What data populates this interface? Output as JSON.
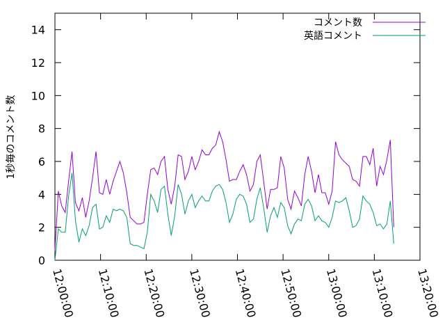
{
  "chart_data": {
    "type": "line",
    "title": "",
    "xlabel": "",
    "ylabel": "1秒毎のコメント数",
    "xlim": [
      "12:00:00",
      "13:20:00"
    ],
    "ylim": [
      0,
      15
    ],
    "x_ticks": [
      "12:00:00",
      "12:10:00",
      "12:20:00",
      "12:30:00",
      "12:40:00",
      "12:50:00",
      "13:00:00",
      "13:10:00",
      "13:20:00"
    ],
    "y_ticks": [
      0,
      2,
      4,
      6,
      8,
      10,
      12,
      14
    ],
    "grid": false,
    "legend_position": "top-right",
    "series": [
      {
        "name": "コメント数",
        "color": "#9400d3",
        "points": [
          [
            "12:00:00",
            0.6
          ],
          [
            "12:00:45",
            4.2
          ],
          [
            "12:01:30",
            3.3
          ],
          [
            "12:02:15",
            2.9
          ],
          [
            "12:03:00",
            4.8
          ],
          [
            "12:03:45",
            6.6
          ],
          [
            "12:04:30",
            3.5
          ],
          [
            "12:05:15",
            3.0
          ],
          [
            "12:06:00",
            3.8
          ],
          [
            "12:06:45",
            2.6
          ],
          [
            "12:07:30",
            3.6
          ],
          [
            "12:08:15",
            5.0
          ],
          [
            "12:09:00",
            6.6
          ],
          [
            "12:09:45",
            4.1
          ],
          [
            "12:10:30",
            4.0
          ],
          [
            "12:11:15",
            4.9
          ],
          [
            "12:12:00",
            4.0
          ],
          [
            "12:12:45",
            4.8
          ],
          [
            "12:13:30",
            5.4
          ],
          [
            "12:14:15",
            6.0
          ],
          [
            "12:15:00",
            5.3
          ],
          [
            "12:15:45",
            4.1
          ],
          [
            "12:16:30",
            2.6
          ],
          [
            "12:17:15",
            2.4
          ],
          [
            "12:18:00",
            2.2
          ],
          [
            "12:18:45",
            2.2
          ],
          [
            "12:19:30",
            2.3
          ],
          [
            "12:20:15",
            4.0
          ],
          [
            "12:21:00",
            5.5
          ],
          [
            "12:21:45",
            5.6
          ],
          [
            "12:22:30",
            5.2
          ],
          [
            "12:23:15",
            6.0
          ],
          [
            "12:24:00",
            6.3
          ],
          [
            "12:24:45",
            4.3
          ],
          [
            "12:25:30",
            3.4
          ],
          [
            "12:26:15",
            4.5
          ],
          [
            "12:27:00",
            6.4
          ],
          [
            "12:27:45",
            6.3
          ],
          [
            "12:28:30",
            4.9
          ],
          [
            "12:29:15",
            5.4
          ],
          [
            "12:30:00",
            6.3
          ],
          [
            "12:30:45",
            5.5
          ],
          [
            "12:31:30",
            6.0
          ],
          [
            "12:32:15",
            6.7
          ],
          [
            "12:33:00",
            6.4
          ],
          [
            "12:33:45",
            6.4
          ],
          [
            "12:34:30",
            6.8
          ],
          [
            "12:35:15",
            7.0
          ],
          [
            "12:36:00",
            7.8
          ],
          [
            "12:36:45",
            7.2
          ],
          [
            "12:37:30",
            6.1
          ],
          [
            "12:38:15",
            4.8
          ],
          [
            "12:39:00",
            4.9
          ],
          [
            "12:39:45",
            4.9
          ],
          [
            "12:40:30",
            5.4
          ],
          [
            "12:41:15",
            5.8
          ],
          [
            "12:42:00",
            5.2
          ],
          [
            "12:42:45",
            4.2
          ],
          [
            "12:43:30",
            4.6
          ],
          [
            "12:44:15",
            6.0
          ],
          [
            "12:45:00",
            6.4
          ],
          [
            "12:45:45",
            4.8
          ],
          [
            "12:46:30",
            3.1
          ],
          [
            "12:47:15",
            4.3
          ],
          [
            "12:48:00",
            4.3
          ],
          [
            "12:48:45",
            4.4
          ],
          [
            "12:49:30",
            6.3
          ],
          [
            "12:50:15",
            5.6
          ],
          [
            "12:51:00",
            3.7
          ],
          [
            "12:51:45",
            3.1
          ],
          [
            "12:52:30",
            4.2
          ],
          [
            "12:53:15",
            3.8
          ],
          [
            "12:54:00",
            3.3
          ],
          [
            "12:54:45",
            5.2
          ],
          [
            "12:55:30",
            6.3
          ],
          [
            "12:56:15",
            5.4
          ],
          [
            "12:57:00",
            4.1
          ],
          [
            "12:57:45",
            5.2
          ],
          [
            "12:58:30",
            4.1
          ],
          [
            "12:59:15",
            4.1
          ],
          [
            "13:00:00",
            3.4
          ],
          [
            "13:00:45",
            4.2
          ],
          [
            "13:01:30",
            7.2
          ],
          [
            "13:02:15",
            6.4
          ],
          [
            "13:03:00",
            6.1
          ],
          [
            "13:03:45",
            5.9
          ],
          [
            "13:04:30",
            5.7
          ],
          [
            "13:05:15",
            4.9
          ],
          [
            "13:06:00",
            4.8
          ],
          [
            "13:06:45",
            4.5
          ],
          [
            "13:07:30",
            6.3
          ],
          [
            "13:08:15",
            6.3
          ],
          [
            "13:09:00",
            5.8
          ],
          [
            "13:09:45",
            6.8
          ],
          [
            "13:10:30",
            4.5
          ],
          [
            "13:11:15",
            5.7
          ],
          [
            "13:12:00",
            5.2
          ],
          [
            "13:12:45",
            6.1
          ],
          [
            "13:13:30",
            7.3
          ],
          [
            "13:14:15",
            2.0
          ]
        ]
      },
      {
        "name": "英語コメント",
        "color": "#009e73",
        "points": [
          [
            "12:00:00",
            0.0
          ],
          [
            "12:00:45",
            1.9
          ],
          [
            "12:01:30",
            1.7
          ],
          [
            "12:02:15",
            1.7
          ],
          [
            "12:03:00",
            3.9
          ],
          [
            "12:03:45",
            5.3
          ],
          [
            "12:04:30",
            2.4
          ],
          [
            "12:05:15",
            1.1
          ],
          [
            "12:06:00",
            1.9
          ],
          [
            "12:06:45",
            1.5
          ],
          [
            "12:07:30",
            2.1
          ],
          [
            "12:08:15",
            3.2
          ],
          [
            "12:09:00",
            3.4
          ],
          [
            "12:09:45",
            1.9
          ],
          [
            "12:10:30",
            2.0
          ],
          [
            "12:11:15",
            2.7
          ],
          [
            "12:12:00",
            2.3
          ],
          [
            "12:12:45",
            3.1
          ],
          [
            "12:13:30",
            3.0
          ],
          [
            "12:14:15",
            3.1
          ],
          [
            "12:15:00",
            3.0
          ],
          [
            "12:15:45",
            2.6
          ],
          [
            "12:16:30",
            1.0
          ],
          [
            "12:17:15",
            0.9
          ],
          [
            "12:18:00",
            0.9
          ],
          [
            "12:18:45",
            0.8
          ],
          [
            "12:19:30",
            0.7
          ],
          [
            "12:20:15",
            1.7
          ],
          [
            "12:21:00",
            4.0
          ],
          [
            "12:21:45",
            3.6
          ],
          [
            "12:22:30",
            2.9
          ],
          [
            "12:23:15",
            4.3
          ],
          [
            "12:24:00",
            4.5
          ],
          [
            "12:24:45",
            2.8
          ],
          [
            "12:25:30",
            1.5
          ],
          [
            "12:26:15",
            2.7
          ],
          [
            "12:27:00",
            4.6
          ],
          [
            "12:27:45",
            4.0
          ],
          [
            "12:28:30",
            2.8
          ],
          [
            "12:29:15",
            3.6
          ],
          [
            "12:30:00",
            4.0
          ],
          [
            "12:30:45",
            3.2
          ],
          [
            "12:31:30",
            3.6
          ],
          [
            "12:32:15",
            3.9
          ],
          [
            "12:33:00",
            3.6
          ],
          [
            "12:33:45",
            3.6
          ],
          [
            "12:34:30",
            4.2
          ],
          [
            "12:35:15",
            4.5
          ],
          [
            "12:36:00",
            4.6
          ],
          [
            "12:36:45",
            4.3
          ],
          [
            "12:37:30",
            3.5
          ],
          [
            "12:38:15",
            2.3
          ],
          [
            "12:39:00",
            2.8
          ],
          [
            "12:39:45",
            3.7
          ],
          [
            "12:40:30",
            4.0
          ],
          [
            "12:41:15",
            3.9
          ],
          [
            "12:42:00",
            3.4
          ],
          [
            "12:42:45",
            2.3
          ],
          [
            "12:43:30",
            2.5
          ],
          [
            "12:44:15",
            3.7
          ],
          [
            "12:45:00",
            4.4
          ],
          [
            "12:45:45",
            3.2
          ],
          [
            "12:46:30",
            1.7
          ],
          [
            "12:47:15",
            2.7
          ],
          [
            "12:48:00",
            3.2
          ],
          [
            "12:48:45",
            2.6
          ],
          [
            "12:49:30",
            3.5
          ],
          [
            "12:50:15",
            3.2
          ],
          [
            "12:51:00",
            2.1
          ],
          [
            "12:51:45",
            1.6
          ],
          [
            "12:52:30",
            2.2
          ],
          [
            "12:53:15",
            2.5
          ],
          [
            "12:54:00",
            2.4
          ],
          [
            "12:54:45",
            3.4
          ],
          [
            "12:55:30",
            3.7
          ],
          [
            "12:56:15",
            3.3
          ],
          [
            "12:57:00",
            2.4
          ],
          [
            "12:57:45",
            2.7
          ],
          [
            "12:58:30",
            2.4
          ],
          [
            "12:59:15",
            2.3
          ],
          [
            "13:00:00",
            2.0
          ],
          [
            "13:00:45",
            2.6
          ],
          [
            "13:01:30",
            3.6
          ],
          [
            "13:02:15",
            3.5
          ],
          [
            "13:03:00",
            3.6
          ],
          [
            "13:03:45",
            3.8
          ],
          [
            "13:04:30",
            3.0
          ],
          [
            "13:05:15",
            2.0
          ],
          [
            "13:06:00",
            2.1
          ],
          [
            "13:06:45",
            2.5
          ],
          [
            "13:07:30",
            3.9
          ],
          [
            "13:08:15",
            3.6
          ],
          [
            "13:09:00",
            3.4
          ],
          [
            "13:09:45",
            2.9
          ],
          [
            "13:10:30",
            2.1
          ],
          [
            "13:11:15",
            2.2
          ],
          [
            "13:12:00",
            1.9
          ],
          [
            "13:12:45",
            2.2
          ],
          [
            "13:13:30",
            3.6
          ],
          [
            "13:14:15",
            1.0
          ]
        ]
      }
    ]
  }
}
